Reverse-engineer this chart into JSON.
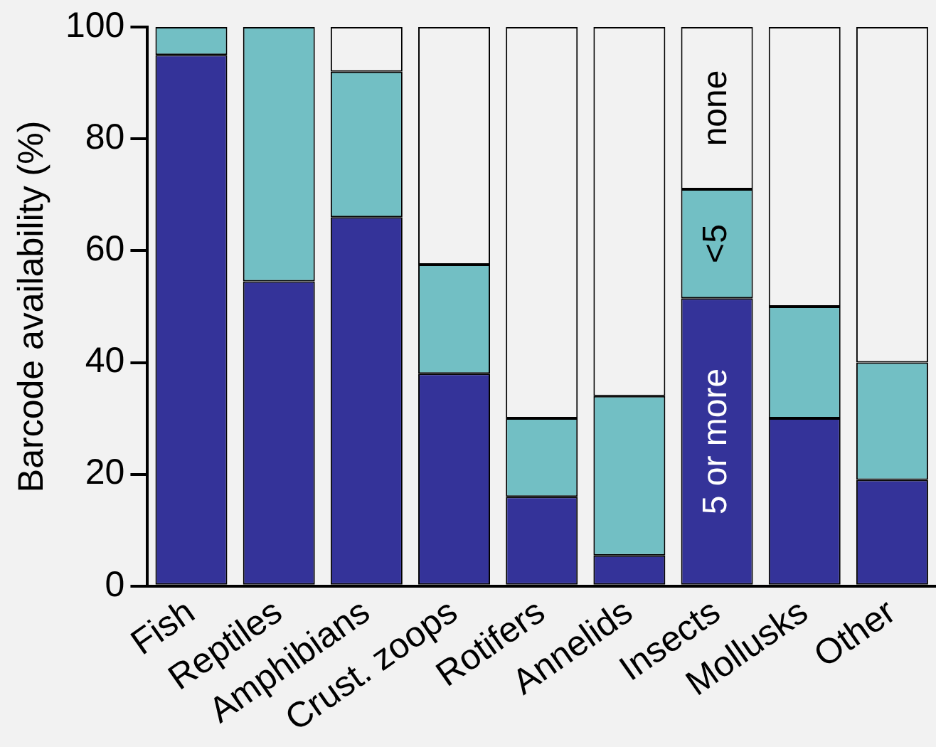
{
  "chart_data": {
    "type": "bar",
    "stacked": true,
    "ylabel": "Barcode availability (%)",
    "categories": [
      "Fish",
      "Reptiles",
      "Amphibians",
      "Crust. zoops",
      "Rotifers",
      "Annelids",
      "Insects",
      "Mollusks",
      "Other"
    ],
    "series": [
      {
        "name": "5 or more",
        "color": "#343399",
        "values": [
          95,
          54.5,
          66,
          38,
          16,
          5.5,
          51.5,
          30,
          19
        ]
      },
      {
        "name": "<5",
        "color": "#72bfc4",
        "values": [
          5,
          45.5,
          26,
          19.5,
          14,
          28.5,
          19.5,
          20,
          21
        ]
      },
      {
        "name": "none",
        "color": "#f2f2f2",
        "values": [
          0,
          0,
          8,
          42.5,
          70,
          66,
          29,
          50,
          60
        ]
      }
    ],
    "ylim": [
      0,
      100
    ],
    "yticks": [
      0,
      20,
      40,
      60,
      80,
      100
    ],
    "grid": false,
    "legend": false
  }
}
